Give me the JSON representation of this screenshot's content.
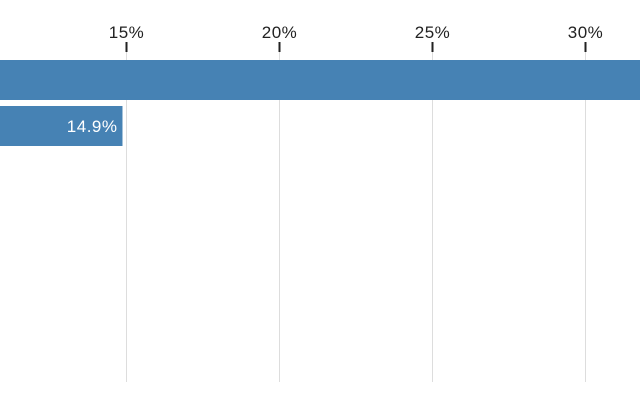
{
  "chart_data": {
    "type": "bar",
    "orientation": "horizontal",
    "x_tick_labels": [
      "15%",
      "20%",
      "25%",
      "30%"
    ],
    "x_ticks": [
      15,
      20,
      25,
      30
    ],
    "xlim": [
      10.9,
      31.8
    ],
    "grid": true,
    "bars": [
      {
        "value": 31.8,
        "label": ""
      },
      {
        "value": 14.9,
        "label": "14.9%"
      }
    ],
    "bar_color": "#4682b4",
    "title": "",
    "xlabel": "",
    "ylabel": ""
  }
}
